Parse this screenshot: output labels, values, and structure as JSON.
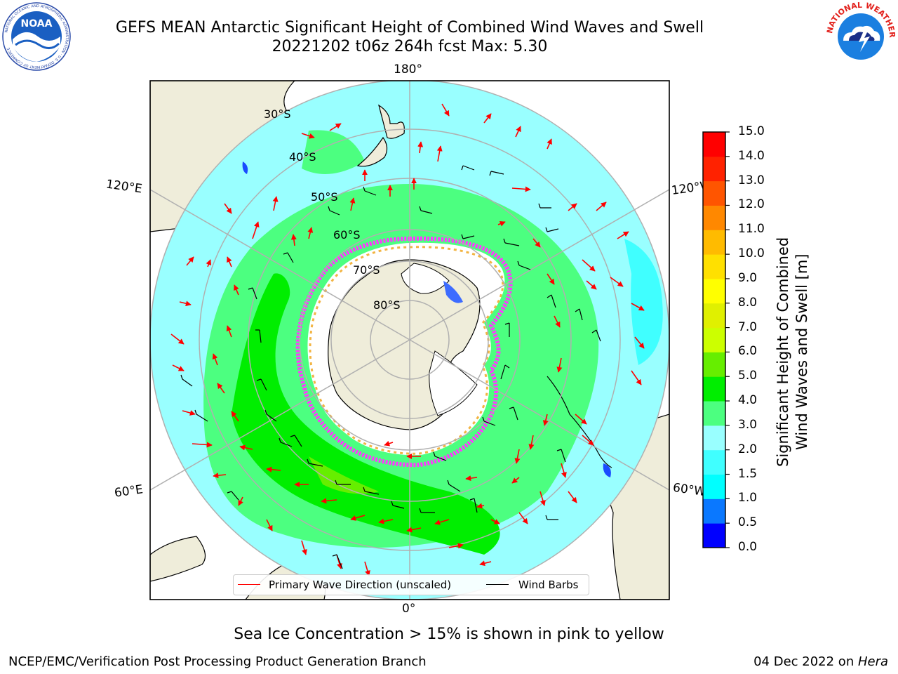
{
  "title": {
    "line1": "GEFS MEAN Antarctic Significant Height of Combined Wind Waves and Swell",
    "line2": "20221202 t06z 264h fcst   Max: 5.30"
  },
  "logos": {
    "left": {
      "text": "NOAA",
      "ring_text": "NATIONAL OCEANIC AND ATMOSPHERIC ADMINISTRATION · U.S. DEPARTMENT OF COMMERCE"
    },
    "right": {
      "ring_text": "NATIONAL WEATHER SERVICE"
    }
  },
  "map": {
    "projection": "south-polar-stereographic",
    "longitude_labels": {
      "top": "180°",
      "bottom": "0°",
      "upper_left": "120°E",
      "upper_right": "120°W",
      "lower_left": "60°E",
      "lower_right": "60°W"
    },
    "latitude_labels": [
      "30°S",
      "40°S",
      "50°S",
      "60°S",
      "70°S",
      "80°S"
    ],
    "legend": {
      "wave_direction": "Primary Wave Direction (unscaled)",
      "wind_barbs": "Wind Barbs"
    },
    "colors": {
      "land": "#efedda",
      "ice_pink": "#ff38ff",
      "ice_yellow": "#f2b443",
      "ice_white": "#ffffff",
      "arrow": "#ff0000",
      "barb": "#000000",
      "grid": "#b0b0b0"
    }
  },
  "colorbar": {
    "label_line1": "Significant Height of Combined",
    "label_line2": "Wind Waves and Swell [m]",
    "ticks": [
      "0.0",
      "0.5",
      "1.0",
      "1.5",
      "2.0",
      "3.0",
      "4.0",
      "5.0",
      "6.0",
      "7.0",
      "8.0",
      "9.0",
      "10.0",
      "11.0",
      "12.0",
      "13.0",
      "14.0",
      "15.0"
    ],
    "colors": [
      "#0000ff",
      "#0a78ff",
      "#00ffff",
      "#40ffff",
      "#99ffff",
      "#4cff80",
      "#00ee00",
      "#66ee00",
      "#ccff00",
      "#e0f000",
      "#ffff00",
      "#ffe000",
      "#ffbb00",
      "#ff8800",
      "#ff5500",
      "#ff2200",
      "#ff0000"
    ]
  },
  "subnote": "Sea Ice Concentration > 15% is shown in pink to yellow",
  "footer": {
    "credit": "NCEP/EMC/Verification Post Processing Product Generation Branch",
    "date_text": "04 Dec 2022 on ",
    "date_italic": "Hera"
  }
}
